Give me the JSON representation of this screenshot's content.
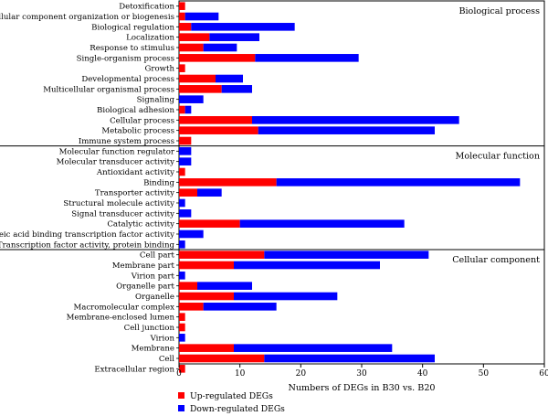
{
  "chart_data": {
    "type": "bar",
    "orientation": "horizontal",
    "stacked": true,
    "xlabel": "Numbers of DEGs in B30 vs. B20",
    "xlim": [
      0,
      60
    ],
    "xticks": [
      0,
      10,
      20,
      30,
      40,
      50,
      60
    ],
    "grid": false,
    "legend_position": "bottom-left",
    "series": [
      {
        "name": "Up-regulated DEGs",
        "color": "#ff0000"
      },
      {
        "name": "Down-regulated DEGs",
        "color": "#0000ff"
      }
    ],
    "groups": [
      {
        "label": "Biological process",
        "categories": [
          {
            "name": "Detoxification",
            "up": 1,
            "down": 0
          },
          {
            "name": "Cellular component organization or biogenesis",
            "up": 1,
            "down": 5.5
          },
          {
            "name": "Biological regulation",
            "up": 2,
            "down": 17
          },
          {
            "name": "Localization",
            "up": 5,
            "down": 8.2
          },
          {
            "name": "Response to stimulus",
            "up": 4,
            "down": 5.5
          },
          {
            "name": "Single-organism process",
            "up": 12.5,
            "down": 17
          },
          {
            "name": "Growth",
            "up": 1,
            "down": 0
          },
          {
            "name": "Developmental process",
            "up": 6,
            "down": 4.5
          },
          {
            "name": "Multicellular organismal process",
            "up": 7,
            "down": 5
          },
          {
            "name": "Signaling",
            "up": 0,
            "down": 4
          },
          {
            "name": "Biological adhesion",
            "up": 1,
            "down": 1
          },
          {
            "name": "Cellular process",
            "up": 12,
            "down": 34
          },
          {
            "name": "Metabolic process",
            "up": 13,
            "down": 29
          },
          {
            "name": "Immune system process",
            "up": 2,
            "down": 0
          }
        ]
      },
      {
        "label": "Molecular function",
        "categories": [
          {
            "name": "Molecular function regulator",
            "up": 0,
            "down": 2
          },
          {
            "name": "Molecular transducer activity",
            "up": 0,
            "down": 2
          },
          {
            "name": "Antioxidant activity",
            "up": 1,
            "down": 0
          },
          {
            "name": "Binding",
            "up": 16,
            "down": 40
          },
          {
            "name": "Transporter activity",
            "up": 3,
            "down": 4
          },
          {
            "name": "Structural molecule activity",
            "up": 0,
            "down": 1
          },
          {
            "name": "Signal transducer activity",
            "up": 0,
            "down": 2
          },
          {
            "name": "Catalytic activity",
            "up": 10,
            "down": 27
          },
          {
            "name": "Nucleic acid binding transcription factor activity",
            "up": 0,
            "down": 4
          },
          {
            "name": "Transcription factor activity, protein binding",
            "up": 0,
            "down": 1
          }
        ]
      },
      {
        "label": "Cellular component",
        "categories": [
          {
            "name": "Cell part",
            "up": 14,
            "down": 27
          },
          {
            "name": "Membrane part",
            "up": 9,
            "down": 24
          },
          {
            "name": "Virion part",
            "up": 0,
            "down": 1
          },
          {
            "name": "Organelle part",
            "up": 3,
            "down": 9
          },
          {
            "name": "Organelle",
            "up": 9,
            "down": 17
          },
          {
            "name": "Macromolecular complex",
            "up": 4,
            "down": 12
          },
          {
            "name": "Membrane-enclosed lumen",
            "up": 1,
            "down": 0
          },
          {
            "name": "Cell junction",
            "up": 1,
            "down": 0
          },
          {
            "name": "Virion",
            "up": 0,
            "down": 1
          },
          {
            "name": "Membrane",
            "up": 9,
            "down": 26
          },
          {
            "name": "Cell",
            "up": 14,
            "down": 28
          },
          {
            "name": "Extracellular region",
            "up": 1,
            "down": 0
          }
        ]
      }
    ]
  }
}
